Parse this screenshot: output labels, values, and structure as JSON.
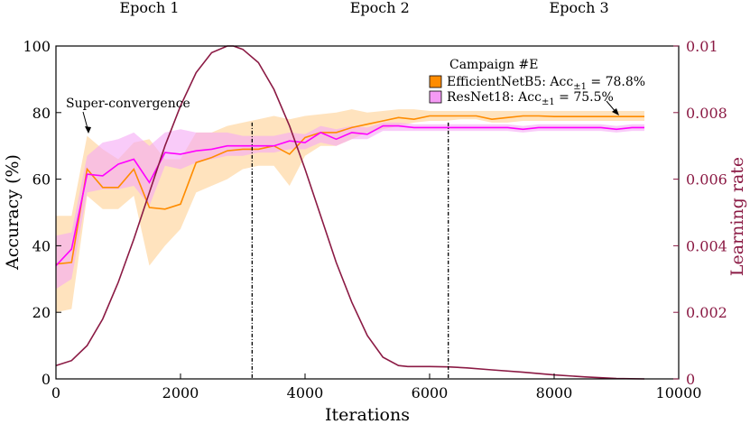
{
  "chart_data": {
    "type": "line",
    "xlabel": "Iterations",
    "ylabel": "Accuracy (%)",
    "ylabel_right": "Learning rate",
    "xlim": [
      0,
      10000
    ],
    "ylim": [
      0,
      100
    ],
    "ylim_right": [
      0,
      0.01
    ],
    "x_ticks": [
      "0",
      "2000",
      "4000",
      "6000",
      "8000",
      "10000"
    ],
    "y_ticks": [
      "0",
      "20",
      "40",
      "60",
      "80",
      "100"
    ],
    "y_ticks_right": [
      "0",
      "0.002",
      "0.004",
      "0.006",
      "0.008",
      "0.01"
    ],
    "epochs": [
      {
        "label": "Epoch 1",
        "x": 1500
      },
      {
        "label": "Epoch 2",
        "x": 5200
      },
      {
        "label": "Epoch 3",
        "x": 8400
      }
    ],
    "epoch_boundaries": [
      3150,
      6300
    ],
    "annotation": {
      "text": "Super-convergence",
      "x": 600,
      "y": 77
    },
    "legend": {
      "title": "Campaign #E",
      "entries": [
        {
          "name": "EfficientNetB5",
          "label": "EfficientNetB5: Acc",
          "subscript": "±1",
          "value_text": " = 78.8%",
          "color": "#ff8c00",
          "band_color": "#ffd9a8"
        },
        {
          "name": "ResNet18",
          "label": "ResNet18: Acc",
          "subscript": "±1",
          "value_text": " = 75.5%",
          "color": "#ff00ff",
          "band_color": "#f5a8f5"
        }
      ]
    },
    "series": [
      {
        "name": "EfficientNetB5",
        "color": "#ff8c00",
        "band_color": "#ffd9a8",
        "x": [
          0,
          250,
          500,
          750,
          1000,
          1250,
          1500,
          1750,
          2000,
          2250,
          2500,
          2750,
          3000,
          3250,
          3500,
          3750,
          4000,
          4250,
          4500,
          4750,
          5000,
          5250,
          5500,
          5750,
          6000,
          6250,
          6500,
          6750,
          7000,
          7250,
          7500,
          7750,
          8000,
          8250,
          8500,
          8750,
          9000,
          9250,
          9450
        ],
        "y": [
          34.5,
          35,
          63,
          57.5,
          57.5,
          63,
          51.5,
          51,
          52.5,
          65,
          66.5,
          68.5,
          69,
          69,
          70,
          67.5,
          72.5,
          74,
          74,
          75.5,
          76.5,
          77.5,
          78.5,
          78,
          79,
          79,
          79,
          79,
          78,
          78.5,
          79,
          79,
          78.8,
          78.8,
          78.8,
          78.8,
          78.8,
          78.8,
          78.8
        ],
        "lower": [
          20,
          21,
          55,
          51,
          51,
          55,
          34,
          40,
          45,
          56,
          58,
          60,
          63,
          64,
          64,
          58,
          67,
          70,
          70,
          72,
          74,
          75,
          76,
          77,
          77.5,
          77.5,
          78,
          78,
          77,
          77,
          77.5,
          77.5,
          77.5,
          77.5,
          77.5,
          77.5,
          77.5,
          77.5,
          77.5
        ],
        "upper": [
          49,
          49,
          73,
          69,
          66,
          71,
          72,
          66,
          66,
          74,
          74,
          76,
          77,
          78,
          79,
          78,
          79,
          79.5,
          80,
          81,
          80,
          80.5,
          81,
          81,
          80.5,
          80.5,
          80.5,
          80.5,
          80.5,
          80.5,
          80.5,
          80.5,
          80.5,
          80.5,
          80.5,
          80.5,
          80.5,
          80.5,
          80.5
        ]
      },
      {
        "name": "ResNet18",
        "color": "#ff00ff",
        "band_color": "#f5a8f5",
        "x": [
          0,
          250,
          500,
          750,
          1000,
          1250,
          1500,
          1750,
          2000,
          2250,
          2500,
          2750,
          3000,
          3250,
          3500,
          3750,
          4000,
          4250,
          4500,
          4750,
          5000,
          5250,
          5500,
          5750,
          6000,
          6250,
          6500,
          6750,
          7000,
          7250,
          7500,
          7750,
          8000,
          8250,
          8500,
          8750,
          9000,
          9250,
          9450
        ],
        "y": [
          34,
          39,
          61.5,
          61,
          64.5,
          66,
          59,
          68,
          67.5,
          68.5,
          69,
          70,
          70,
          70,
          70,
          71.5,
          71,
          74,
          72,
          74,
          73.5,
          76,
          76,
          75.5,
          75.5,
          75.5,
          75.5,
          75.5,
          75.5,
          75.5,
          75,
          75.5,
          75.5,
          75.5,
          75.5,
          75.5,
          75,
          75.5,
          75.5
        ],
        "lower": [
          27,
          30,
          56,
          57,
          57,
          58,
          52,
          64,
          63,
          65,
          66,
          67,
          67,
          68,
          68,
          69,
          69,
          71,
          70,
          72,
          72,
          74.5,
          74.5,
          74.5,
          74.5,
          74.5,
          74.5,
          74.5,
          74.5,
          74.5,
          74,
          74.5,
          74.5,
          74.5,
          74.5,
          74.5,
          74,
          74.5,
          74.5
        ],
        "upper": [
          43,
          44,
          67,
          71,
          72,
          74,
          70,
          74,
          75,
          74,
          74,
          74,
          73,
          73,
          73,
          74,
          73.5,
          76,
          75,
          76,
          75.5,
          77,
          77,
          76.5,
          76.5,
          76.5,
          76.5,
          76.5,
          76.5,
          76.5,
          76,
          76.5,
          76.5,
          76.5,
          76.5,
          76.5,
          76,
          76.5,
          76.5
        ]
      }
    ],
    "learning_rate": {
      "name": "Learning rate",
      "color": "#8b1a44",
      "x": [
        0,
        250,
        500,
        750,
        1000,
        1250,
        1500,
        1750,
        2000,
        2250,
        2500,
        2750,
        2850,
        3000,
        3250,
        3500,
        3750,
        4000,
        4250,
        4500,
        4750,
        5000,
        5250,
        5500,
        5650,
        5800,
        6000,
        6300,
        6600,
        7000,
        7500,
        8000,
        8500,
        9000,
        9450
      ],
      "y": [
        0.0004,
        0.00055,
        0.001,
        0.0018,
        0.0029,
        0.0042,
        0.0056,
        0.007,
        0.0082,
        0.0092,
        0.0098,
        0.01,
        0.01,
        0.0099,
        0.0095,
        0.0087,
        0.0076,
        0.0063,
        0.0049,
        0.0035,
        0.0023,
        0.0013,
        0.00065,
        0.0004,
        0.00037,
        0.00037,
        0.00037,
        0.00036,
        0.00033,
        0.00027,
        0.0002,
        0.00012,
        6e-05,
        1e-05,
        0
      ]
    }
  }
}
